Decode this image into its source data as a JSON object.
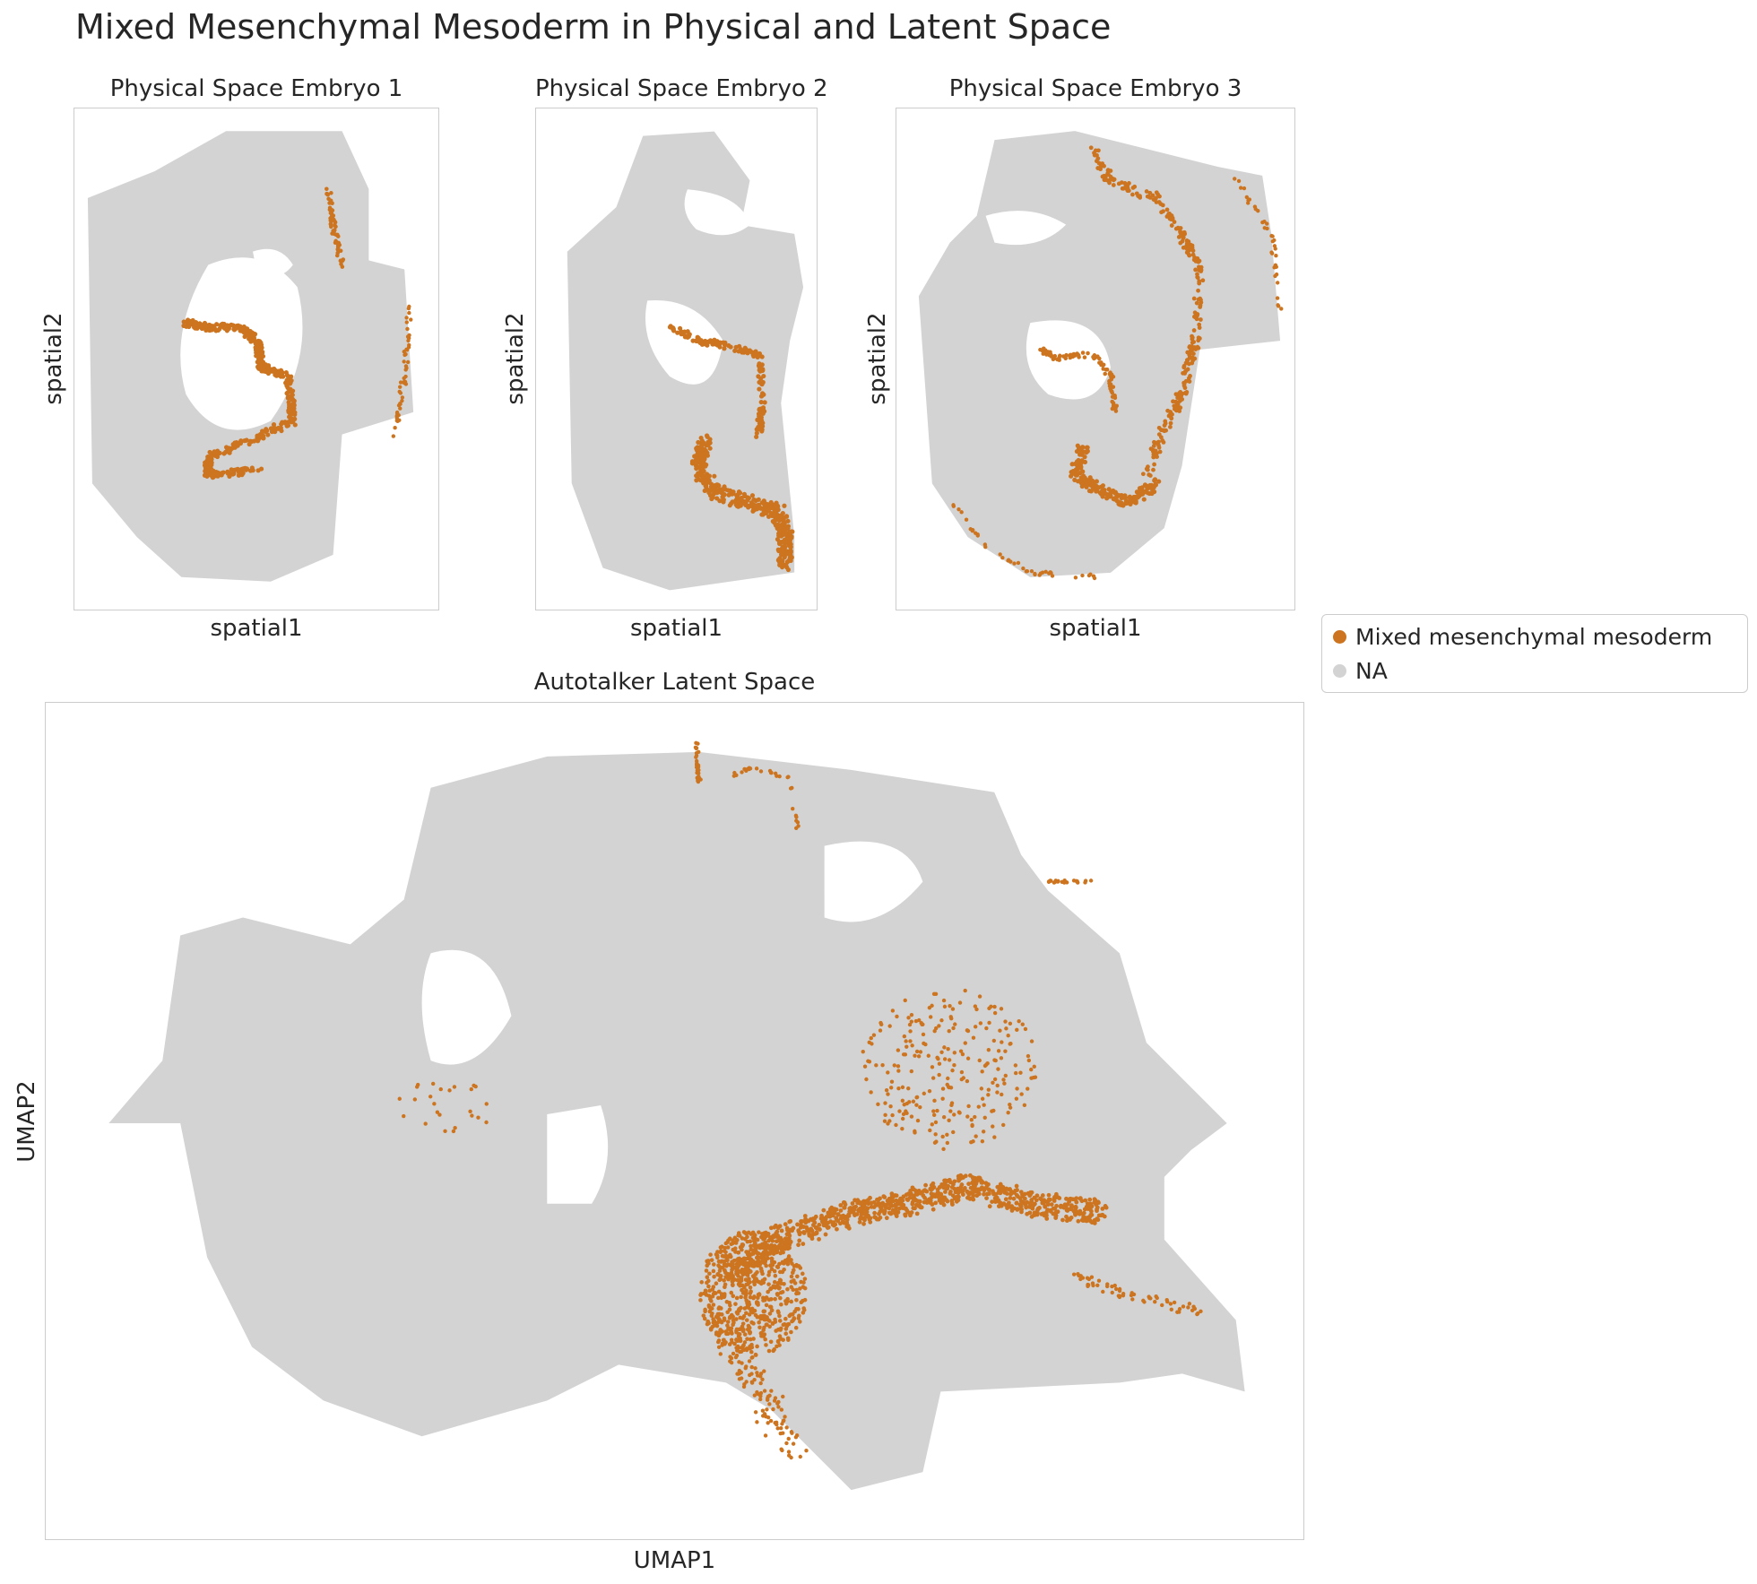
{
  "figure": {
    "title": "Mixed Mesenchymal Mesoderm in Physical and Latent Space"
  },
  "colors": {
    "highlight": "#cc741f",
    "background_cells": "#d3d3d3",
    "frame": "#cccccc"
  },
  "legend": {
    "items": [
      {
        "label": "Mixed mesenchymal mesoderm",
        "color": "#cc741f"
      },
      {
        "label": "NA",
        "color": "#d3d3d3"
      }
    ],
    "placement": "right"
  },
  "chart_data": [
    {
      "type": "scatter",
      "title": "Physical Space Embryo 1",
      "xlabel": "spatial1",
      "ylabel": "spatial2",
      "grid": false,
      "series": [
        {
          "name": "Mixed mesenchymal mesoderm",
          "color": "#cc741f",
          "description_shape": "highlighted cell clusters"
        },
        {
          "name": "NA",
          "color": "#d3d3d3"
        }
      ]
    },
    {
      "type": "scatter",
      "title": "Physical Space Embryo 2",
      "xlabel": "spatial1",
      "ylabel": "spatial2",
      "grid": false,
      "series": [
        {
          "name": "Mixed mesenchymal mesoderm",
          "color": "#cc741f"
        },
        {
          "name": "NA",
          "color": "#d3d3d3"
        }
      ]
    },
    {
      "type": "scatter",
      "title": "Physical Space Embryo 3",
      "xlabel": "spatial1",
      "ylabel": "spatial2",
      "grid": false,
      "series": [
        {
          "name": "Mixed mesenchymal mesoderm",
          "color": "#cc741f"
        },
        {
          "name": "NA",
          "color": "#d3d3d3"
        }
      ]
    },
    {
      "type": "scatter",
      "title": "Autotalker Latent Space",
      "xlabel": "UMAP1",
      "ylabel": "UMAP2",
      "grid": false,
      "series": [
        {
          "name": "Mixed mesenchymal mesoderm",
          "color": "#cc741f"
        },
        {
          "name": "NA",
          "color": "#d3d3d3"
        }
      ]
    }
  ]
}
